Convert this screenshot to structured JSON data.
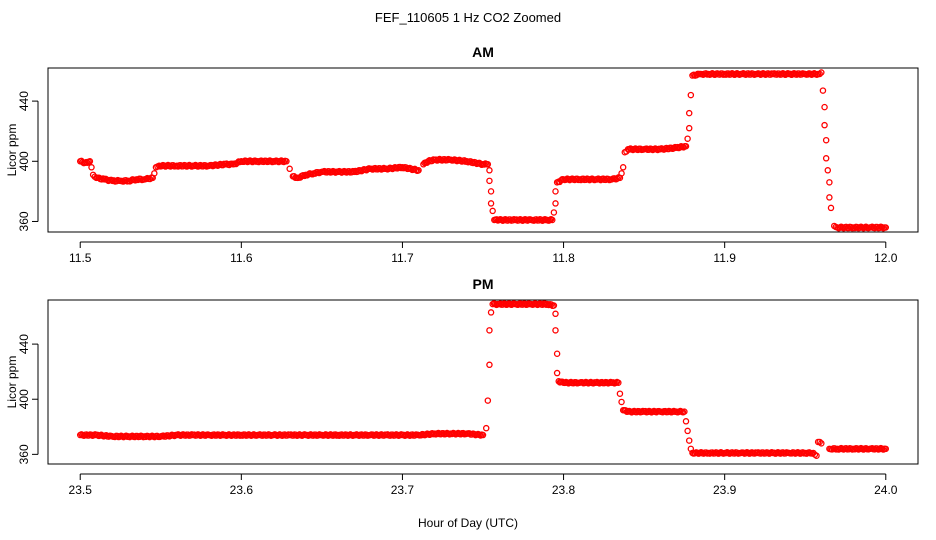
{
  "figure": {
    "title": "FEF_110605  1 Hz CO2 Zoomed",
    "xlabel": "Hour of Day (UTC)"
  },
  "chart_data": [
    {
      "type": "scatter",
      "title": "AM",
      "xlabel": "Hour of Day (UTC)",
      "ylabel": "Licor ppm",
      "xlim": [
        11.48,
        12.02
      ],
      "ylim": [
        353,
        462
      ],
      "xticks": [
        "11.5",
        "11.6",
        "11.7",
        "11.8",
        "11.9",
        "12.0"
      ],
      "xtick_values": [
        11.5,
        11.6,
        11.7,
        11.8,
        11.9,
        12.0
      ],
      "yticks": [
        "360",
        "400",
        "440"
      ],
      "ytick_values": [
        360,
        400,
        440
      ],
      "marker": "open-circle",
      "color": "#ff0000",
      "grid": false,
      "series": [
        {
          "points": [
            [
              11.5,
              400
            ],
            [
              11.503,
              399
            ],
            [
              11.506,
              400
            ],
            [
              11.507,
              396
            ],
            [
              11.508,
              391
            ],
            [
              11.51,
              389
            ],
            [
              11.515,
              388
            ],
            [
              11.52,
              387
            ],
            [
              11.525,
              387
            ],
            [
              11.53,
              387
            ],
            [
              11.535,
              388
            ],
            [
              11.54,
              388
            ],
            [
              11.545,
              389
            ],
            [
              11.546,
              392
            ],
            [
              11.547,
              396
            ],
            [
              11.549,
              397
            ],
            [
              11.56,
              397
            ],
            [
              11.57,
              397
            ],
            [
              11.58,
              397
            ],
            [
              11.59,
              398
            ],
            [
              11.595,
              398
            ],
            [
              11.6,
              400
            ],
            [
              11.61,
              400
            ],
            [
              11.62,
              400
            ],
            [
              11.628,
              400
            ],
            [
              11.63,
              395
            ],
            [
              11.632,
              390
            ],
            [
              11.635,
              389
            ],
            [
              11.64,
              391
            ],
            [
              11.645,
              392
            ],
            [
              11.65,
              393
            ],
            [
              11.66,
              393
            ],
            [
              11.67,
              393
            ],
            [
              11.68,
              395
            ],
            [
              11.69,
              395
            ],
            [
              11.7,
              396
            ],
            [
              11.71,
              394
            ],
            [
              11.713,
              398
            ],
            [
              11.716,
              400
            ],
            [
              11.72,
              401
            ],
            [
              11.73,
              401
            ],
            [
              11.74,
              400
            ],
            [
              11.75,
              398
            ],
            [
              11.753,
              398
            ],
            [
              11.754,
              394
            ],
            [
              11.754,
              387
            ],
            [
              11.755,
              380
            ],
            [
              11.755,
              372
            ],
            [
              11.756,
              367
            ],
            [
              11.757,
              361
            ],
            [
              11.76,
              361
            ],
            [
              11.77,
              361
            ],
            [
              11.78,
              361
            ],
            [
              11.79,
              361
            ],
            [
              11.793,
              361
            ],
            [
              11.794,
              366
            ],
            [
              11.795,
              372
            ],
            [
              11.795,
              380
            ],
            [
              11.796,
              386
            ],
            [
              11.8,
              388
            ],
            [
              11.81,
              388
            ],
            [
              11.82,
              388
            ],
            [
              11.83,
              388
            ],
            [
              11.835,
              389
            ],
            [
              11.836,
              392
            ],
            [
              11.837,
              396
            ],
            [
              11.838,
              406
            ],
            [
              11.84,
              408
            ],
            [
              11.85,
              408
            ],
            [
              11.86,
              408
            ],
            [
              11.87,
              409
            ],
            [
              11.876,
              410
            ],
            [
              11.877,
              415
            ],
            [
              11.878,
              422
            ],
            [
              11.878,
              432
            ],
            [
              11.879,
              444
            ],
            [
              11.88,
              457
            ],
            [
              11.885,
              458
            ],
            [
              11.89,
              458
            ],
            [
              11.9,
              458
            ],
            [
              11.91,
              458
            ],
            [
              11.92,
              458
            ],
            [
              11.93,
              458
            ],
            [
              11.94,
              458
            ],
            [
              11.95,
              458
            ],
            [
              11.958,
              458
            ],
            [
              11.96,
              459
            ],
            [
              11.961,
              447
            ],
            [
              11.962,
              436
            ],
            [
              11.962,
              424
            ],
            [
              11.963,
              414
            ],
            [
              11.963,
              402
            ],
            [
              11.964,
              394
            ],
            [
              11.965,
              386
            ],
            [
              11.965,
              376
            ],
            [
              11.966,
              369
            ],
            [
              11.968,
              357
            ],
            [
              11.97,
              356
            ],
            [
              11.98,
              356
            ],
            [
              11.99,
              356
            ],
            [
              12.0,
              356
            ]
          ]
        }
      ]
    },
    {
      "type": "scatter",
      "title": "PM",
      "xlabel": "Hour of Day (UTC)",
      "ylabel": "Licor ppm",
      "xlim": [
        23.48,
        24.02
      ],
      "ylim": [
        353,
        472
      ],
      "xticks": [
        "23.5",
        "23.6",
        "23.7",
        "23.8",
        "23.9",
        "24.0"
      ],
      "xtick_values": [
        23.5,
        23.6,
        23.7,
        23.8,
        23.9,
        24.0
      ],
      "yticks": [
        "360",
        "400",
        "440"
      ],
      "ytick_values": [
        360,
        400,
        440
      ],
      "marker": "open-circle",
      "color": "#ff0000",
      "grid": false,
      "series": [
        {
          "points": [
            [
              23.5,
              374
            ],
            [
              23.51,
              374
            ],
            [
              23.52,
              373
            ],
            [
              23.53,
              373
            ],
            [
              23.54,
              373
            ],
            [
              23.55,
              373
            ],
            [
              23.56,
              374
            ],
            [
              23.57,
              374
            ],
            [
              23.58,
              374
            ],
            [
              23.59,
              374
            ],
            [
              23.6,
              374
            ],
            [
              23.61,
              374
            ],
            [
              23.62,
              374
            ],
            [
              23.63,
              374
            ],
            [
              23.64,
              374
            ],
            [
              23.65,
              374
            ],
            [
              23.66,
              374
            ],
            [
              23.67,
              374
            ],
            [
              23.68,
              374
            ],
            [
              23.69,
              374
            ],
            [
              23.7,
              374
            ],
            [
              23.71,
              374
            ],
            [
              23.72,
              375
            ],
            [
              23.73,
              375
            ],
            [
              23.74,
              375
            ],
            [
              23.75,
              374
            ],
            [
              23.752,
              379
            ],
            [
              23.753,
              399
            ],
            [
              23.754,
              425
            ],
            [
              23.754,
              450
            ],
            [
              23.755,
              463
            ],
            [
              23.756,
              469
            ],
            [
              23.76,
              469
            ],
            [
              23.77,
              469
            ],
            [
              23.78,
              469
            ],
            [
              23.79,
              469
            ],
            [
              23.794,
              468
            ],
            [
              23.795,
              462
            ],
            [
              23.795,
              450
            ],
            [
              23.796,
              433
            ],
            [
              23.796,
              419
            ],
            [
              23.797,
              413
            ],
            [
              23.8,
              412
            ],
            [
              23.81,
              412
            ],
            [
              23.82,
              412
            ],
            [
              23.83,
              412
            ],
            [
              23.834,
              412
            ],
            [
              23.835,
              404
            ],
            [
              23.836,
              398
            ],
            [
              23.837,
              392
            ],
            [
              23.84,
              391
            ],
            [
              23.85,
              391
            ],
            [
              23.86,
              391
            ],
            [
              23.87,
              391
            ],
            [
              23.875,
              391
            ],
            [
              23.876,
              384
            ],
            [
              23.877,
              377
            ],
            [
              23.878,
              370
            ],
            [
              23.879,
              364
            ],
            [
              23.88,
              361
            ],
            [
              23.89,
              361
            ],
            [
              23.9,
              361
            ],
            [
              23.91,
              361
            ],
            [
              23.92,
              361
            ],
            [
              23.93,
              361
            ],
            [
              23.94,
              361
            ],
            [
              23.95,
              361
            ],
            [
              23.955,
              361
            ],
            [
              23.957,
              359
            ],
            [
              23.958,
              369
            ],
            [
              23.96,
              368
            ],
            [
              23.965,
              364
            ],
            [
              23.97,
              364
            ],
            [
              23.98,
              364
            ],
            [
              23.99,
              364
            ],
            [
              24.0,
              364
            ]
          ]
        }
      ]
    }
  ]
}
